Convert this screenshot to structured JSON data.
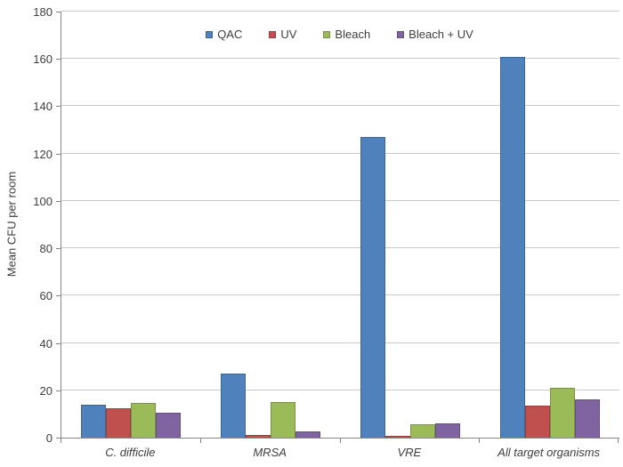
{
  "chart_data": {
    "type": "bar",
    "title": "",
    "xlabel": "",
    "ylabel": "Mean CFU per room",
    "ylim": [
      0,
      180
    ],
    "yticks": [
      0,
      20,
      40,
      60,
      80,
      100,
      120,
      140,
      160,
      180
    ],
    "grid": true,
    "legend_position": "top-center",
    "categories": [
      "C. difficile",
      "MRSA",
      "VRE",
      "All target organisms"
    ],
    "series": [
      {
        "name": "QAC",
        "color": "#4F81BD",
        "values": [
          14,
          27,
          127,
          161
        ]
      },
      {
        "name": "UV",
        "color": "#C0504D",
        "values": [
          12.5,
          1,
          0.7,
          13.5
        ]
      },
      {
        "name": "Bleach",
        "color": "#9BBB59",
        "values": [
          14.5,
          15,
          5.5,
          21
        ]
      },
      {
        "name": "Bleach + UV",
        "color": "#8064A2",
        "values": [
          10.5,
          2.5,
          6,
          16
        ]
      }
    ]
  }
}
